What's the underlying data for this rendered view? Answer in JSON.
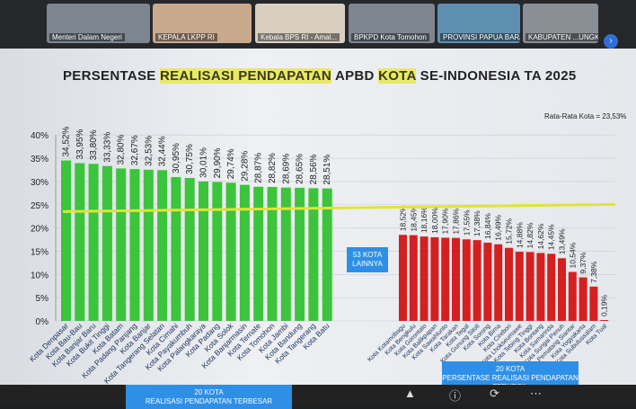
{
  "participants": [
    "Menteri Dalam Negeri",
    "KEPALA LKPP RI",
    "Kebala BPS RI - Amal...",
    "BPKPD Kota Tomohon",
    "PROVINSI PAPUA BARAT",
    "KABUPATEN ...UNGKAN"
  ],
  "chart_data": {
    "type": "bar",
    "title_parts": [
      "PERSENTASE ",
      "REALISASI PENDAPATAN",
      " APBD ",
      "KOTA",
      " SE-INDONESIA TA 2025"
    ],
    "ylim": [
      0,
      40
    ],
    "yticks": [
      "0%",
      "5%",
      "10%",
      "15%",
      "20%",
      "25%",
      "30%",
      "35%",
      "40%"
    ],
    "average": {
      "label": "Rata-Rata Kota = 23,53%",
      "value": 23.53,
      "color": "#e2e23a"
    },
    "top": {
      "color": "#3cc43c",
      "categories": [
        "Kota Denpasar",
        "Kota Bau-Bau",
        "Kota Banjar Baru",
        "Kota Bukit Tinggi",
        "Kota Batam",
        "Kota Padang Panjang",
        "Kota Banjar",
        "Kota Tangerang Selatan",
        "Kota Cimahi",
        "Kota Payakumbuh",
        "Kota Palangkaraya",
        "Kota Padang",
        "Kota Solok",
        "Kota Banjarmasin",
        "Kota Ternate",
        "Kota Tomohon",
        "Kota Jambi",
        "Kota Bandung",
        "Kota Tangerang",
        "Kota Batu"
      ],
      "values": [
        34.52,
        33.95,
        33.8,
        33.33,
        32.8,
        32.67,
        32.53,
        32.44,
        30.95,
        30.75,
        30.01,
        29.9,
        29.74,
        29.28,
        28.87,
        28.82,
        28.69,
        28.65,
        28.56,
        28.51
      ],
      "labels": [
        "34,52%",
        "33,95%",
        "33,80%",
        "33,33%",
        "32,80%",
        "32,67%",
        "32,53%",
        "32,44%",
        "30,95%",
        "30,75%",
        "30,01%",
        "29,90%",
        "29,74%",
        "29,28%",
        "28,87%",
        "28,82%",
        "28,69%",
        "28,65%",
        "28,56%",
        "28,51%"
      ]
    },
    "bottom": {
      "color": "#d42020",
      "categories": [
        "Kota Kotamobagu",
        "Kota Bengkulu",
        "Kota Gorontalo",
        "Kota Balikpapan",
        "Kota Sawahlunto",
        "Kota Tarakan",
        "Kota Tegal",
        "Kota Gunung Sitoli",
        "Kota Sorong",
        "Kota Bima",
        "Kota Cirebon",
        "Kota Lhokseumawe",
        "Kota Tebing Tinggi",
        "Kota Bontang",
        "Kota Samarinda",
        "Kota Sungai Penuh",
        "Kota Pematang Siantar",
        "Kota Yogyakarta",
        "Kota Subulussalam",
        "Kota Tual"
      ],
      "values": [
        18.52,
        18.45,
        18.16,
        18.0,
        17.9,
        17.86,
        17.55,
        17.38,
        16.84,
        16.49,
        15.72,
        14.88,
        14.82,
        14.62,
        14.45,
        13.49,
        10.54,
        9.37,
        7.38,
        0.19
      ],
      "labels": [
        "18,52%",
        "18,45%",
        "18,16%",
        "18,00%",
        "17,90%",
        "17,86%",
        "17,55%",
        "17,38%",
        "16,84%",
        "16,49%",
        "15,72%",
        "14,88%",
        "14,82%",
        "14,62%",
        "14,45%",
        "13,49%",
        "10,54%",
        "9,37%",
        "7,38%",
        "0,19%"
      ]
    },
    "middle_box": [
      "53 KOTA",
      "LAINNYA"
    ],
    "top_box": [
      "20 KOTA",
      "REALISASI PENDAPATAN TERBESAR"
    ],
    "bottom_box": [
      "20 KOTA",
      "PERSENTASE REALISASI PENDAPATAN TERKECIL"
    ]
  }
}
